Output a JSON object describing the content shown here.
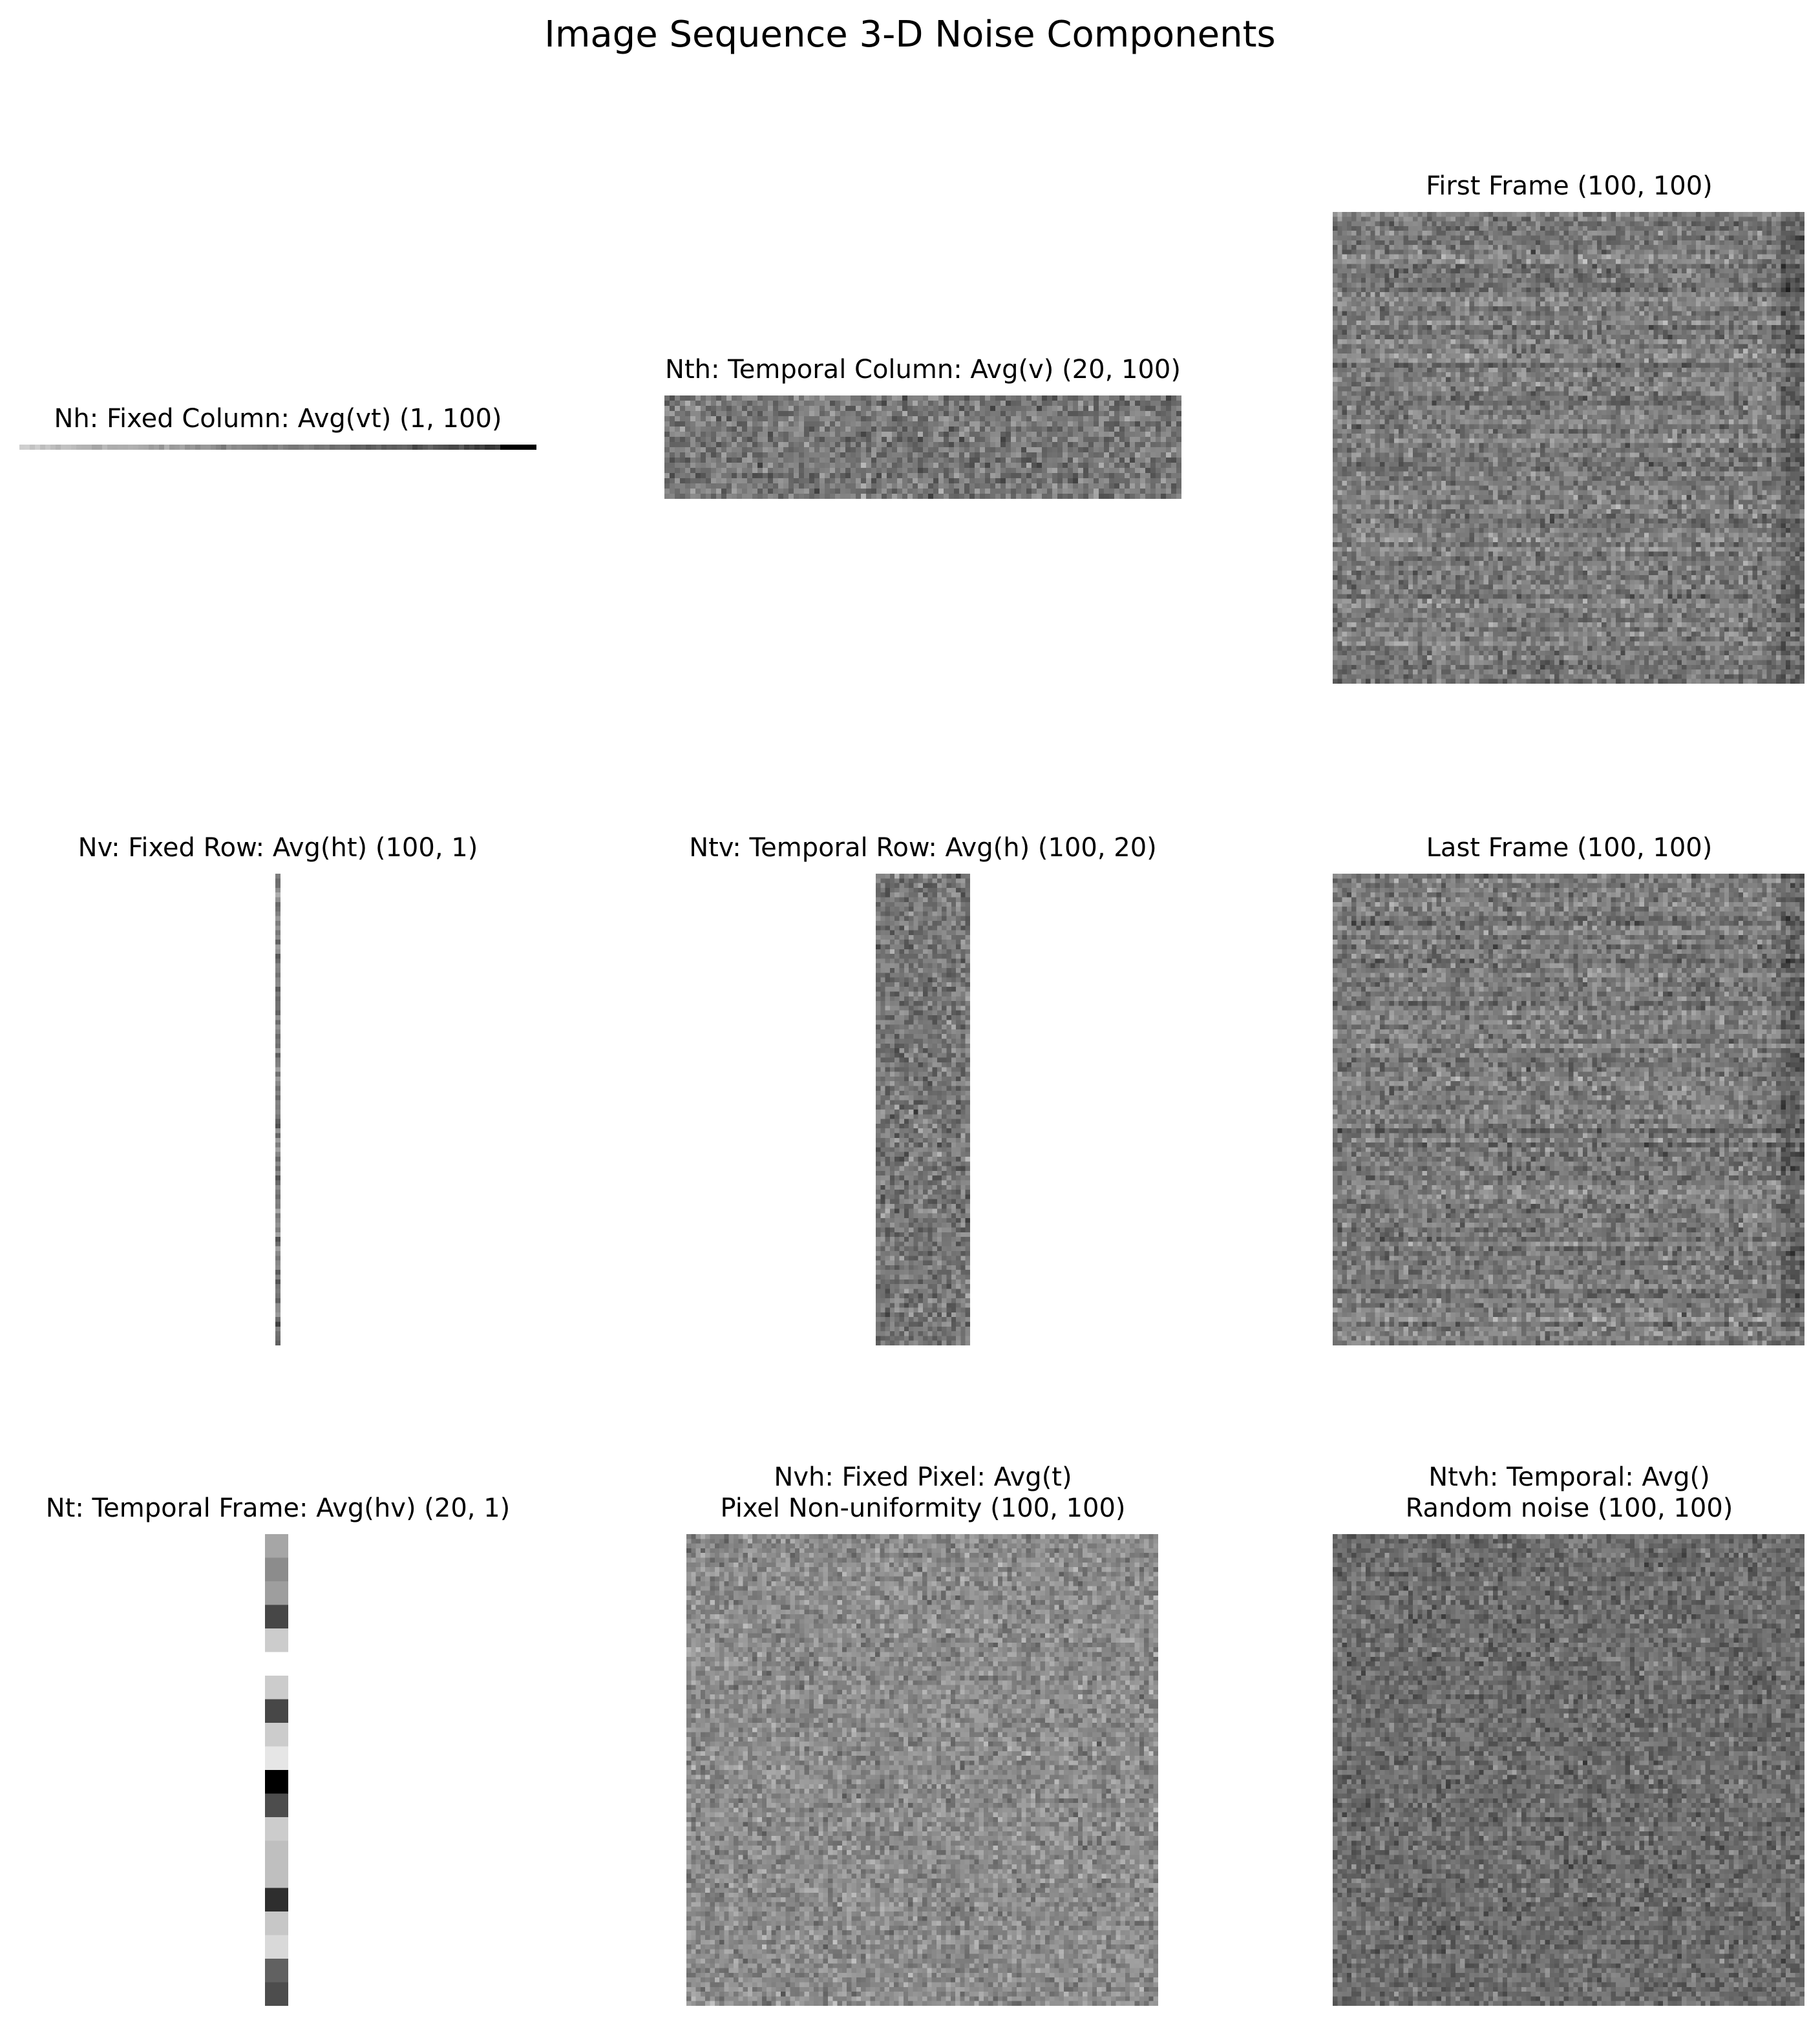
{
  "chart_data": {
    "type": "heatmap",
    "title": "Image Sequence 3-D Noise Components",
    "colormap": "gray",
    "axes": "off",
    "panels": [
      {
        "id": "nh",
        "title_lines": [
          "Nh: Fixed Column: Avg(vt) (1, 100)"
        ],
        "shape": [
          1,
          100
        ],
        "pattern": "ramp-dark-right"
      },
      {
        "id": "nth",
        "title_lines": [
          "Nth: Temporal Column: Avg(v) (20, 100)"
        ],
        "shape": [
          20,
          100
        ],
        "pattern": "noise"
      },
      {
        "id": "first-frame",
        "title_lines": [
          "First Frame (100, 100)"
        ],
        "shape": [
          100,
          100
        ],
        "pattern": "noise-rows"
      },
      {
        "id": "nv",
        "title_lines": [
          "Nv: Fixed Row: Avg(ht) (100, 1)"
        ],
        "shape": [
          100,
          1
        ],
        "pattern": "noise"
      },
      {
        "id": "ntv",
        "title_lines": [
          "Ntv: Temporal Row: Avg(h) (100, 20)"
        ],
        "shape": [
          100,
          20
        ],
        "pattern": "noise"
      },
      {
        "id": "last-frame",
        "title_lines": [
          "Last Frame (100, 100)"
        ],
        "shape": [
          100,
          100
        ],
        "pattern": "noise-rows"
      },
      {
        "id": "nt",
        "title_lines": [
          "Nt: Temporal Frame: Avg(hv) (20, 1)"
        ],
        "shape": [
          20,
          1
        ],
        "values": [
          0.35,
          0.45,
          0.38,
          0.72,
          0.2,
          0.0,
          0.2,
          0.72,
          0.2,
          0.1,
          1.0,
          0.7,
          0.2,
          0.25,
          0.25,
          0.82,
          0.22,
          0.15,
          0.62,
          0.7
        ]
      },
      {
        "id": "nvh",
        "title_lines": [
          "Nvh: Fixed Pixel: Avg(t)",
          "Pixel Non-uniformity (100, 100)"
        ],
        "shape": [
          100,
          100
        ],
        "pattern": "noise-light"
      },
      {
        "id": "ntvh",
        "title_lines": [
          "Ntvh: Temporal: Avg()",
          "Random noise (100, 100)"
        ],
        "shape": [
          100,
          100
        ],
        "pattern": "noise-dark"
      }
    ]
  }
}
